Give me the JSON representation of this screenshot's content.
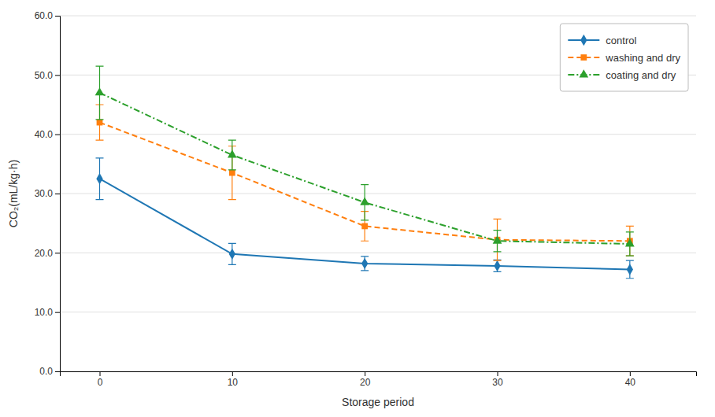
{
  "chart_data": {
    "type": "line",
    "xlabel": "Storage period",
    "ylabel": "CO₂(mL/kg·h)",
    "x": [
      0,
      10,
      20,
      30,
      40
    ],
    "xlim": [
      -3,
      45
    ],
    "xticks": [
      0,
      10,
      20,
      30,
      40
    ],
    "ylim": [
      0.0,
      60.0
    ],
    "yticks": [
      {
        "value": 0.0,
        "label": "0.0"
      },
      {
        "value": 10.0,
        "label": "10.0"
      },
      {
        "value": 20.0,
        "label": "20.0"
      },
      {
        "value": 30.0,
        "label": "30.0"
      },
      {
        "value": 40.0,
        "label": "40.0"
      },
      {
        "value": 50.0,
        "label": "50.0"
      },
      {
        "value": 60.0,
        "label": "60.0"
      }
    ],
    "grid": true,
    "legend": "upper right",
    "series": [
      {
        "name": "control",
        "marker": "diamond",
        "line_style": "solid",
        "values": [
          32.5,
          19.8,
          18.2,
          17.8,
          17.2
        ],
        "errors": [
          3.5,
          1.8,
          1.2,
          1.0,
          1.5
        ]
      },
      {
        "name": "washing and dry",
        "marker": "square",
        "line_style": "dashed",
        "values": [
          42.0,
          33.5,
          24.5,
          22.2,
          22.0
        ],
        "errors": [
          3.0,
          4.5,
          2.5,
          3.5,
          2.5
        ]
      },
      {
        "name": "coating and dry",
        "marker": "triangle",
        "line_style": "dashdot",
        "values": [
          47.0,
          36.5,
          28.5,
          22.0,
          21.5
        ],
        "errors": [
          4.5,
          2.5,
          3.0,
          1.8,
          2.0
        ]
      }
    ]
  }
}
